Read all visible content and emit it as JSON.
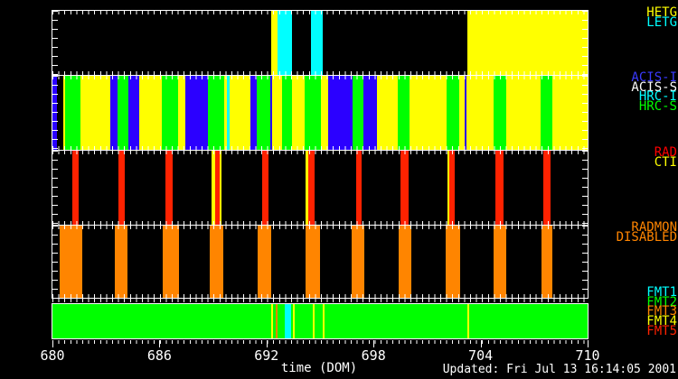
{
  "updated_text": "Updated: Fri Jul 13 16:14:05 2001",
  "colors": {
    "yellow": "#ffff00",
    "cyan": "#00ffff",
    "green": "#00ff00",
    "blue": "#2b00ff",
    "black": "#000000",
    "red": "#ff2200",
    "orange": "#ff8500",
    "white": "#ffffff",
    "red_label": "#ff0000",
    "blue_label": "#3a3aff",
    "axis": "#ffffff"
  },
  "chart_data": {
    "type": "timeline-bands",
    "title": "",
    "xlabel": "time (DOM)",
    "x_range": [
      680,
      710
    ],
    "x_ticks": [
      680,
      686,
      692,
      698,
      704,
      710
    ],
    "x_minor_per_day": 3,
    "grid": false,
    "legend_position": "right-margin",
    "bands": [
      {
        "id": "gratings",
        "background": "black",
        "legend": [
          {
            "label": "HETG",
            "color": "yellow"
          },
          {
            "label": "LETG",
            "color": "cyan"
          }
        ],
        "intervals": [
          [
            692.27,
            692.62,
            "yellow"
          ],
          [
            692.62,
            693.43,
            "cyan"
          ],
          [
            694.49,
            695.15,
            "cyan"
          ],
          [
            703.26,
            710.0,
            "yellow"
          ]
        ]
      },
      {
        "id": "detectors",
        "background": "yellow",
        "legend": [
          {
            "label": "ACIS-I",
            "color": "blue_label"
          },
          {
            "label": "ACIS-S",
            "color": "white"
          },
          {
            "label": "HRC-I",
            "color": "cyan"
          },
          {
            "label": "HRC-S",
            "color": "green"
          }
        ],
        "intervals": [
          [
            680.0,
            680.23,
            "blue"
          ],
          [
            680.23,
            680.63,
            "black"
          ],
          [
            680.71,
            681.55,
            "green"
          ],
          [
            683.24,
            683.65,
            "blue"
          ],
          [
            683.65,
            684.28,
            "green"
          ],
          [
            684.28,
            684.89,
            "blue"
          ],
          [
            686.13,
            687.02,
            "green"
          ],
          [
            687.45,
            688.72,
            "blue"
          ],
          [
            688.72,
            689.63,
            "green"
          ],
          [
            689.78,
            689.93,
            "cyan"
          ],
          [
            691.1,
            691.43,
            "blue"
          ],
          [
            691.43,
            692.21,
            "green"
          ],
          [
            692.21,
            692.29,
            "blue"
          ],
          [
            692.87,
            693.45,
            "green"
          ],
          [
            694.14,
            695.05,
            "green"
          ],
          [
            695.48,
            696.83,
            "blue"
          ],
          [
            696.83,
            697.43,
            "green"
          ],
          [
            697.43,
            698.19,
            "blue"
          ],
          [
            699.36,
            700.04,
            "green"
          ],
          [
            702.07,
            702.83,
            "green"
          ],
          [
            703.13,
            703.23,
            "blue"
          ],
          [
            704.73,
            705.44,
            "green"
          ],
          [
            707.34,
            708.02,
            "green"
          ]
        ]
      },
      {
        "id": "rad-cti",
        "background": "black",
        "legend": [
          {
            "label": "RAD",
            "color": "red_label"
          },
          {
            "label": "CTI",
            "color": "yellow"
          }
        ],
        "intervals": [
          [
            681.11,
            681.49,
            "red"
          ],
          [
            683.7,
            684.07,
            "red"
          ],
          [
            686.35,
            686.73,
            "red"
          ],
          [
            688.94,
            689.1,
            "yellow"
          ],
          [
            689.1,
            689.4,
            "red"
          ],
          [
            689.4,
            689.5,
            "yellow"
          ],
          [
            691.76,
            692.11,
            "red"
          ],
          [
            694.19,
            694.34,
            "yellow"
          ],
          [
            694.34,
            694.68,
            "red"
          ],
          [
            697.05,
            697.31,
            "red"
          ],
          [
            699.53,
            699.99,
            "red"
          ],
          [
            702.12,
            702.25,
            "yellow"
          ],
          [
            702.25,
            702.55,
            "red"
          ],
          [
            704.83,
            705.29,
            "red"
          ],
          [
            707.52,
            707.9,
            "red"
          ]
        ]
      },
      {
        "id": "radmon",
        "background": "black",
        "legend": [
          {
            "label": "RADMON",
            "color": "orange"
          },
          {
            "label": "DISABLED",
            "color": "orange"
          }
        ],
        "intervals": [
          [
            680.41,
            681.65,
            "orange"
          ],
          [
            683.52,
            684.21,
            "orange"
          ],
          [
            686.16,
            687.07,
            "orange"
          ],
          [
            688.84,
            689.58,
            "orange"
          ],
          [
            691.5,
            692.24,
            "orange"
          ],
          [
            694.19,
            694.98,
            "orange"
          ],
          [
            696.75,
            697.48,
            "orange"
          ],
          [
            699.41,
            700.12,
            "orange"
          ],
          [
            702.04,
            702.88,
            "orange"
          ],
          [
            704.73,
            705.42,
            "orange"
          ],
          [
            707.44,
            708.02,
            "orange"
          ]
        ]
      },
      {
        "id": "fmt",
        "background": "green",
        "legend": [
          {
            "label": "FMT1",
            "color": "cyan"
          },
          {
            "label": "FMT2",
            "color": "green"
          },
          {
            "label": "FMT3",
            "color": "orange"
          },
          {
            "label": "FMT4",
            "color": "yellow"
          },
          {
            "label": "FMT5",
            "color": "red"
          }
        ],
        "intervals": [
          [
            692.24,
            692.34,
            "yellow"
          ],
          [
            692.52,
            692.62,
            "orange"
          ],
          [
            693.02,
            693.4,
            "cyan"
          ],
          [
            693.46,
            693.56,
            "yellow"
          ],
          [
            694.6,
            694.7,
            "yellow"
          ],
          [
            695.13,
            695.23,
            "yellow"
          ],
          [
            703.26,
            703.36,
            "yellow"
          ]
        ]
      }
    ]
  }
}
